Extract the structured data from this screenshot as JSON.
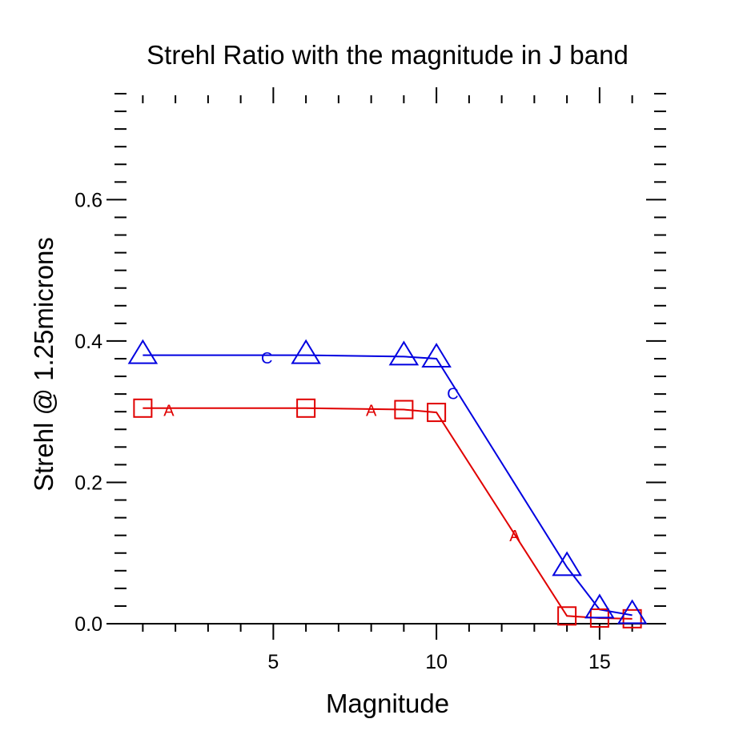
{
  "chart_data": {
    "type": "line",
    "title": "Strehl Ratio with the magnitude in J band",
    "xlabel": "Magnitude",
    "ylabel": "Strehl @ 1.25microns",
    "xlim": [
      0.5,
      16.5
    ],
    "ylim": [
      0.0,
      0.75
    ],
    "x_ticks": [
      5,
      10,
      15
    ],
    "x_tick_labels": [
      "5",
      "10",
      "15"
    ],
    "y_ticks": [
      0.0,
      0.2,
      0.4,
      0.6
    ],
    "y_tick_labels": [
      "0.0",
      "0.2",
      "0.4",
      "0.6"
    ],
    "grid": false,
    "series": [
      {
        "name": "A",
        "marker": "square",
        "color": "#e00000",
        "x": [
          1,
          6,
          9,
          10,
          14,
          15,
          16
        ],
        "y": [
          0.305,
          0.305,
          0.303,
          0.299,
          0.011,
          0.008,
          0.007
        ],
        "inline_labels": [
          {
            "text": "A",
            "x": 1.8,
            "y": 0.303
          },
          {
            "text": "A",
            "x": 8.0,
            "y": 0.303
          },
          {
            "text": "A",
            "x": 12.4,
            "y": 0.126
          }
        ]
      },
      {
        "name": "C",
        "marker": "triangle",
        "color": "#0000e0",
        "x": [
          1,
          6,
          9,
          10,
          14,
          15,
          16
        ],
        "y": [
          0.38,
          0.38,
          0.378,
          0.375,
          0.08,
          0.02,
          0.012
        ],
        "inline_labels": [
          {
            "text": "C",
            "x": 4.8,
            "y": 0.377
          },
          {
            "text": "C",
            "x": 10.5,
            "y": 0.327
          }
        ]
      }
    ]
  }
}
